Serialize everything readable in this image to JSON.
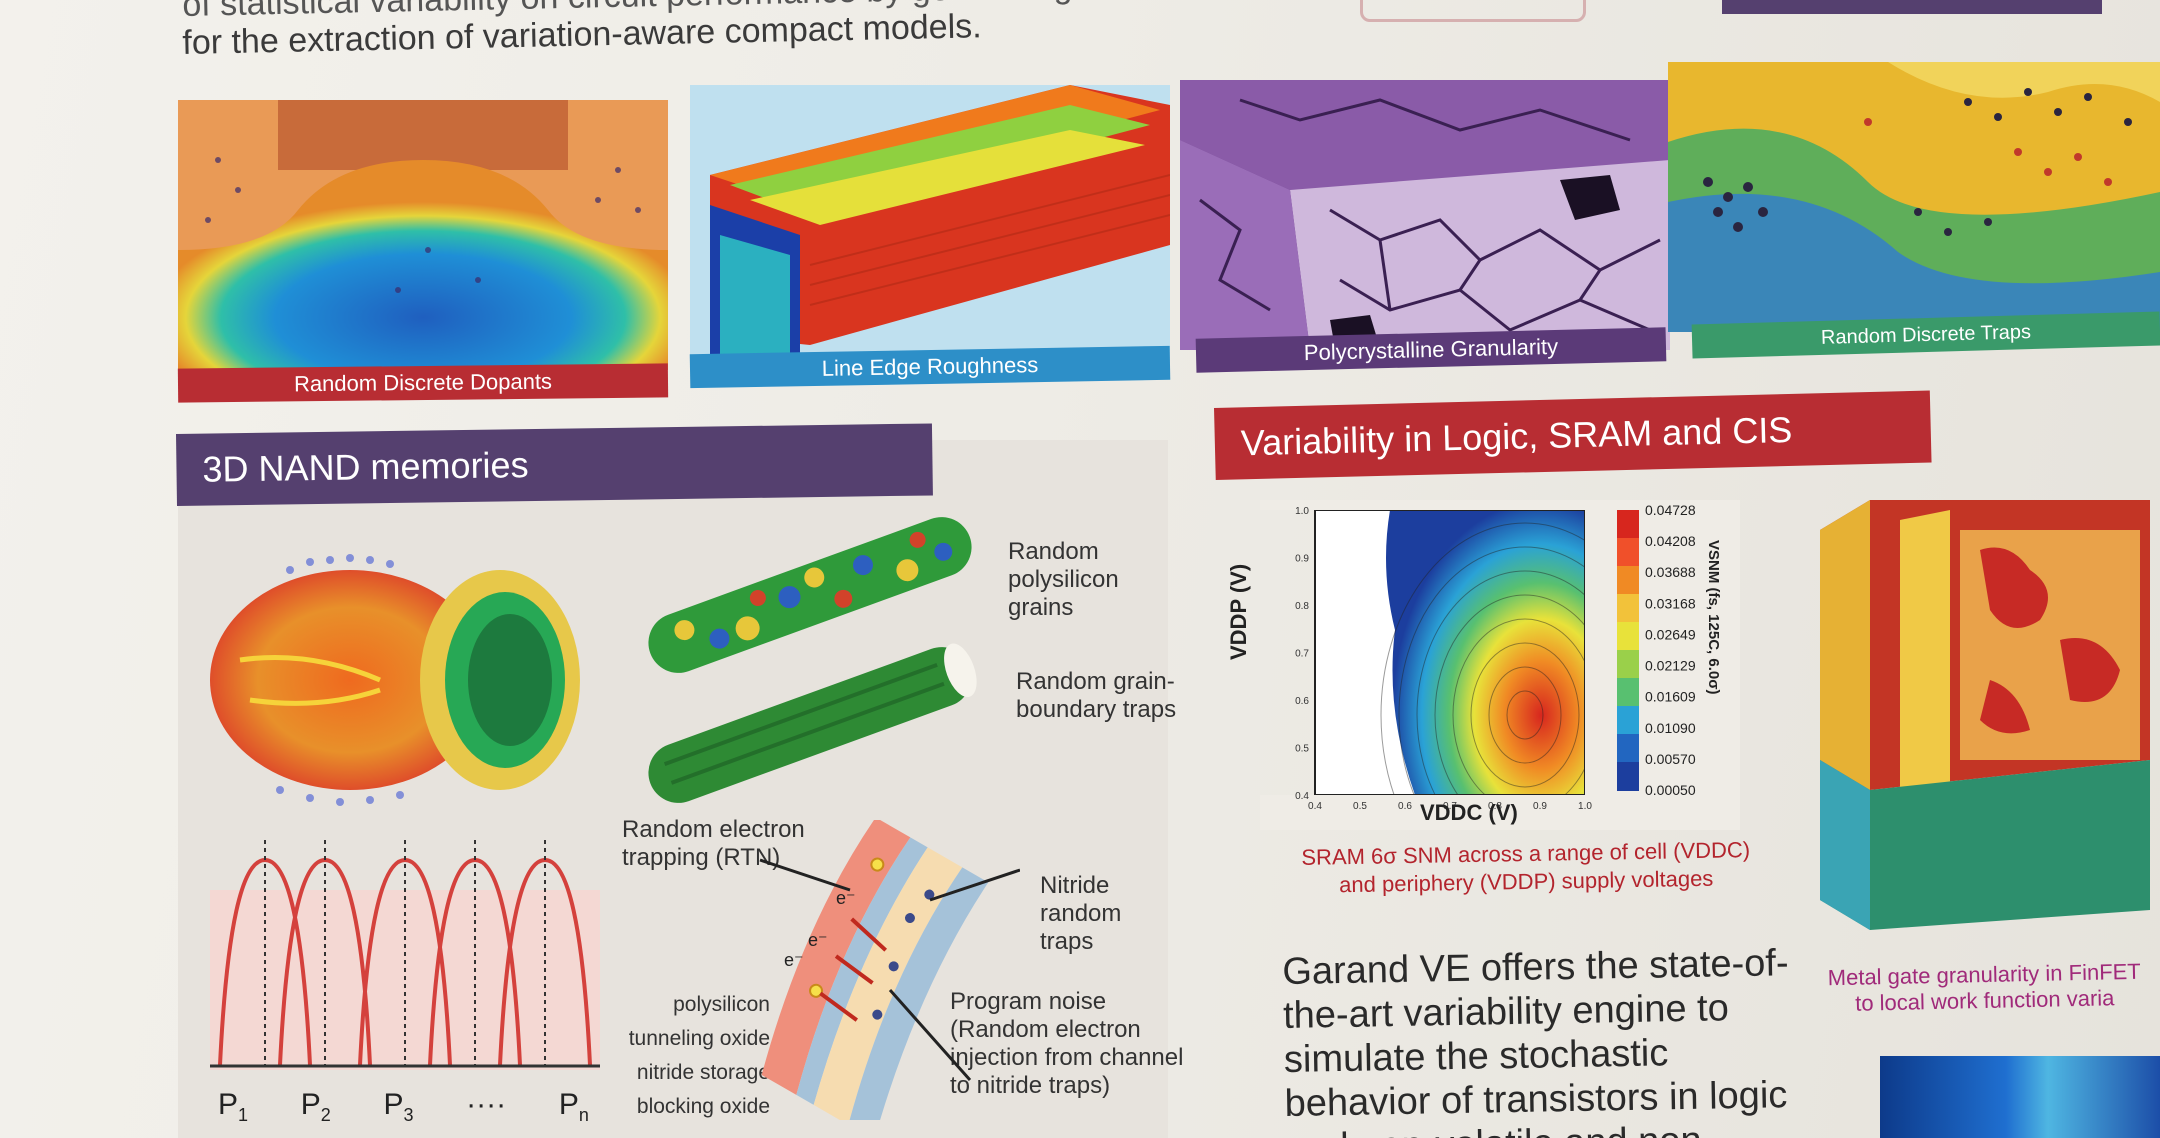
{
  "intro": {
    "line_top": "of statistical variability on circuit performance by generating",
    "line": "for the extraction of variation-aware compact models."
  },
  "mechanisms": [
    {
      "label": "Random Discrete Dopants",
      "color": "#b82d33"
    },
    {
      "label": "Line Edge Roughness",
      "color": "#2d8fc8"
    },
    {
      "label": "Polycrystalline Granularity",
      "color": "#5b3a78"
    },
    {
      "label": "Random Discrete Traps",
      "color": "#3a9a6a"
    }
  ],
  "nand": {
    "title": "3D NAND memories",
    "title_color": "#55406f",
    "labels": {
      "poly_grains": [
        "Random",
        "polysilicon",
        "grains"
      ],
      "grain_traps": [
        "Random grain-",
        "boundary traps"
      ],
      "rtn": [
        "Random electron",
        "trapping (RTN)"
      ],
      "nitride": [
        "Nitride",
        "random",
        "traps"
      ],
      "program_noise": [
        "Program noise",
        "(Random electron",
        "injection from channel",
        "to nitride traps)"
      ],
      "layers": [
        "polysilicon",
        "tunneling oxide",
        "nitride storage",
        "blocking oxide"
      ],
      "states": [
        "P",
        "P",
        "P",
        "····",
        "P"
      ],
      "state_subs": [
        "1",
        "2",
        "3",
        "",
        "n"
      ],
      "electron": "e⁻"
    }
  },
  "logic": {
    "title": "Variability in Logic, SRAM and CIS",
    "title_color": "#b82d33",
    "caption": [
      "SRAM 6σ SNM across a range of cell (VDDC)",
      "and periphery (VDDP) supply voltages"
    ],
    "body": [
      "Garand VE offers the state-of-",
      "the-art variability engine to",
      "simulate the stochastic",
      "behavior of transistors in logic",
      "and non-volatile and non-"
    ],
    "right_caption": [
      "Metal gate granularity in FinFET",
      "to local work function varia"
    ]
  },
  "chart_data": {
    "type": "heatmap",
    "xlabel": "VDDC (V)",
    "ylabel": "VDDP (V)",
    "colorbar_label": "VSNM (fs, 125C, 6.0σ)",
    "colorbar_ticks": [
      "0.04728",
      "0.04208",
      "0.03688",
      "0.03168",
      "0.02649",
      "0.02129",
      "0.01609",
      "0.01090",
      "0.00570",
      "0.00050"
    ],
    "xlim": [
      0.4,
      1.0
    ],
    "ylim": [
      0.4,
      1.0
    ],
    "x_ticks": [
      "0.4",
      "0.5",
      "0.6",
      "0.7",
      "0.8",
      "0.9",
      "1.0"
    ],
    "y_ticks": [
      "0.4",
      "0.5",
      "0.6",
      "0.7",
      "0.8",
      "0.9",
      "1.0"
    ]
  }
}
